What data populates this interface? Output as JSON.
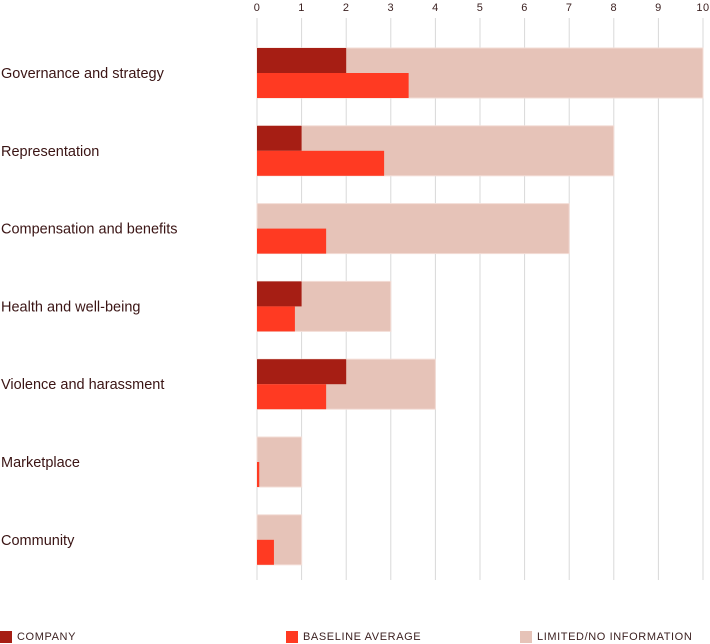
{
  "chart_data": {
    "type": "bar",
    "orientation": "horizontal",
    "xlim": [
      0,
      10
    ],
    "ticks": [
      0,
      1,
      2,
      3,
      4,
      5,
      6,
      7,
      8,
      9,
      10
    ],
    "grid": true,
    "categories": [
      "Governance and strategy",
      "Representation",
      "Compensation and benefits",
      "Health and well-being",
      "Violence and harassment",
      "Marketplace",
      "Community"
    ],
    "series": [
      {
        "name": "LIMITED/NO INFORMATION",
        "color": "#e6c3b8",
        "values": [
          10,
          8,
          7,
          3,
          4,
          1,
          1
        ]
      },
      {
        "name": "COMPANY",
        "color": "#a61e14",
        "values": [
          2,
          1,
          0,
          1,
          2,
          0,
          0
        ]
      },
      {
        "name": "BASELINE AVERAGE",
        "color": "#ff3a22",
        "values": [
          3.4,
          2.85,
          1.55,
          0.85,
          1.55,
          0.05,
          0.38
        ]
      }
    ]
  },
  "legend": {
    "company": "COMPANY",
    "baseline": "BASELINE AVERAGE",
    "limited": "LIMITED/NO INFORMATION"
  },
  "colors": {
    "company": "#a61e14",
    "baseline": "#ff3a22",
    "limited": "#e6c3b8",
    "grid": "#d9d9d9"
  }
}
